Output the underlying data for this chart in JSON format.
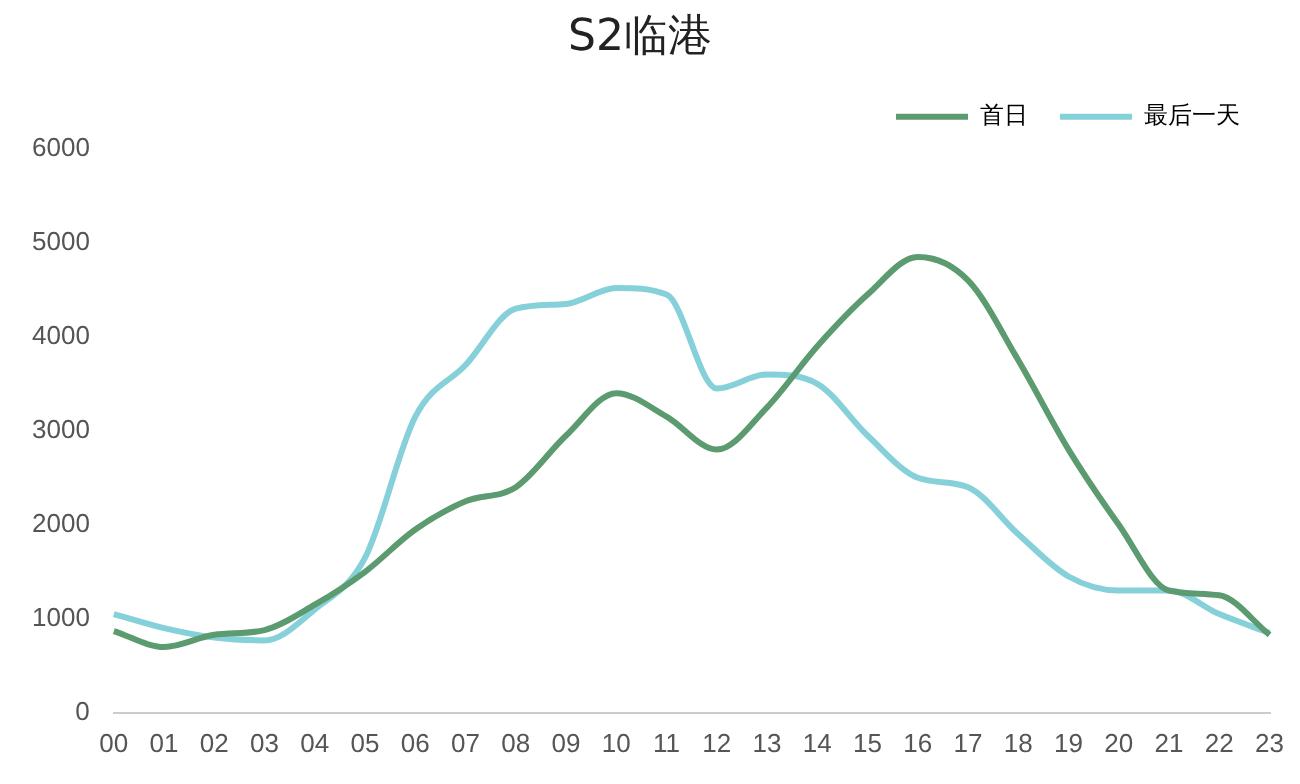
{
  "chart_data": {
    "type": "line",
    "title": "S2临港",
    "categories": [
      "00",
      "01",
      "02",
      "03",
      "04",
      "05",
      "06",
      "07",
      "08",
      "09",
      "10",
      "11",
      "12",
      "13",
      "14",
      "15",
      "16",
      "17",
      "18",
      "19",
      "20",
      "21",
      "22",
      "23"
    ],
    "series": [
      {
        "name": "首日",
        "color": "#5b9b6f",
        "values": [
          870,
          700,
          830,
          880,
          1150,
          1500,
          1950,
          2250,
          2400,
          2950,
          3400,
          3150,
          2800,
          3250,
          3900,
          4450,
          4850,
          4600,
          3750,
          2800,
          2000,
          1300,
          1250,
          830
        ]
      },
      {
        "name": "最后一天",
        "color": "#86d0da",
        "values": [
          1050,
          900,
          800,
          770,
          1100,
          1650,
          3150,
          3700,
          4300,
          4350,
          4520,
          4450,
          3450,
          3600,
          3500,
          2950,
          2500,
          2400,
          1900,
          1450,
          1300,
          1300,
          1050,
          850
        ]
      }
    ],
    "ylim": [
      0,
      6000
    ],
    "yticks": [
      0,
      1000,
      2000,
      3000,
      4000,
      5000,
      6000
    ],
    "grid": false,
    "legend": "top right",
    "marker": "none",
    "line_style": "solid"
  }
}
